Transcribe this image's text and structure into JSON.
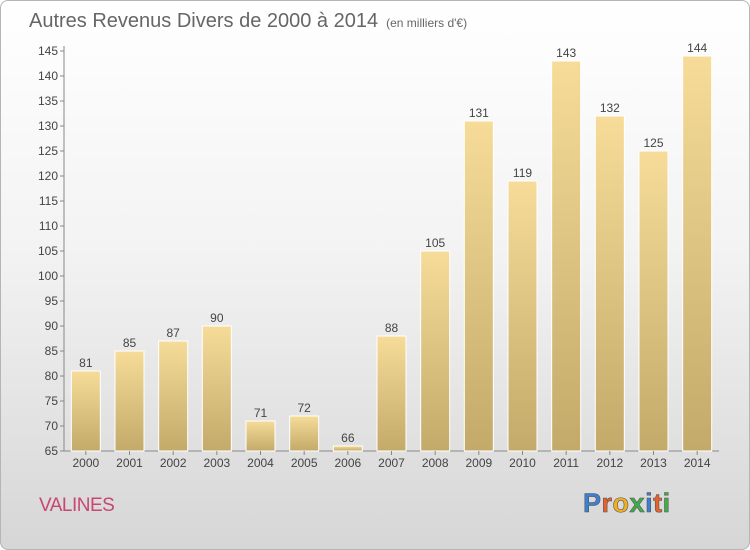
{
  "chart_data": {
    "type": "bar",
    "title": "Autres Revenus Divers de 2000 à 2014",
    "subtitle": "(en milliers d'€)",
    "categories": [
      "2000",
      "2001",
      "2002",
      "2003",
      "2004",
      "2005",
      "2006",
      "2007",
      "2008",
      "2009",
      "2010",
      "2011",
      "2012",
      "2013",
      "2014"
    ],
    "values": [
      81,
      85,
      87,
      90,
      71,
      72,
      66,
      88,
      105,
      131,
      119,
      143,
      132,
      125,
      144
    ],
    "ylim": [
      65,
      145
    ],
    "yticks": [
      65,
      70,
      75,
      80,
      85,
      90,
      95,
      100,
      105,
      110,
      115,
      120,
      125,
      130,
      135,
      140,
      145
    ],
    "grid": false,
    "data_labels": true
  },
  "footer": {
    "place": "VALINES",
    "logo_letters": [
      "P",
      "r",
      "o",
      "x",
      "i",
      "t",
      "i"
    ],
    "logo_colors": [
      "#3d7fd0",
      "#e8612c",
      "#f2b01e",
      "#3fae49",
      "#3d7fd0",
      "#e8612c",
      "#3fae49"
    ]
  }
}
